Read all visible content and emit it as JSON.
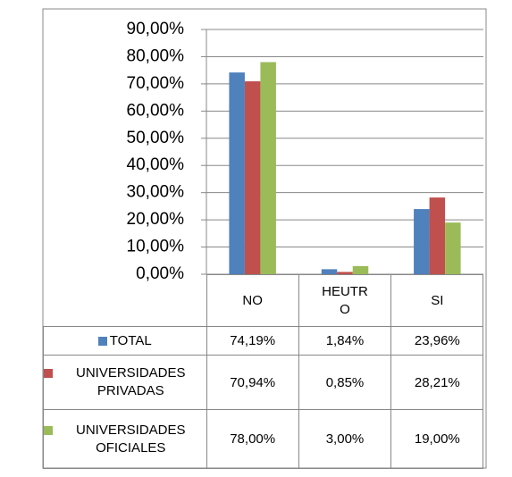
{
  "chart_data": {
    "type": "bar",
    "categories": [
      "NO",
      "HEUTRO",
      "SI"
    ],
    "series": [
      {
        "name": "TOTAL",
        "color": "#4f81bd",
        "values": [
          74.19,
          1.84,
          23.96
        ],
        "value_labels": [
          "74,19%",
          "1,84%",
          "23,96%"
        ]
      },
      {
        "name": "UNIVERSIDADES PRIVADAS",
        "color": "#c0504d",
        "values": [
          70.94,
          0.85,
          28.21
        ],
        "value_labels": [
          "70,94%",
          "0,85%",
          "28,21%"
        ]
      },
      {
        "name": "UNIVERSIDADES OFICIALES",
        "color": "#9bbb59",
        "values": [
          78,
          3,
          19
        ],
        "value_labels": [
          "78,00%",
          "3,00%",
          "19,00%"
        ]
      }
    ],
    "ylim": [
      0,
      90
    ],
    "yticks": [
      {
        "value": 0,
        "label": "0,00%"
      },
      {
        "value": 10,
        "label": "10,00%"
      },
      {
        "value": 20,
        "label": "20,00%"
      },
      {
        "value": 30,
        "label": "30,00%"
      },
      {
        "value": 40,
        "label": "40,00%"
      },
      {
        "value": 50,
        "label": "50,00%"
      },
      {
        "value": 60,
        "label": "60,00%"
      },
      {
        "value": 70,
        "label": "70,00%"
      },
      {
        "value": 80,
        "label": "80,00%"
      },
      {
        "value": 90,
        "label": "90,00%"
      }
    ],
    "grid": true
  }
}
